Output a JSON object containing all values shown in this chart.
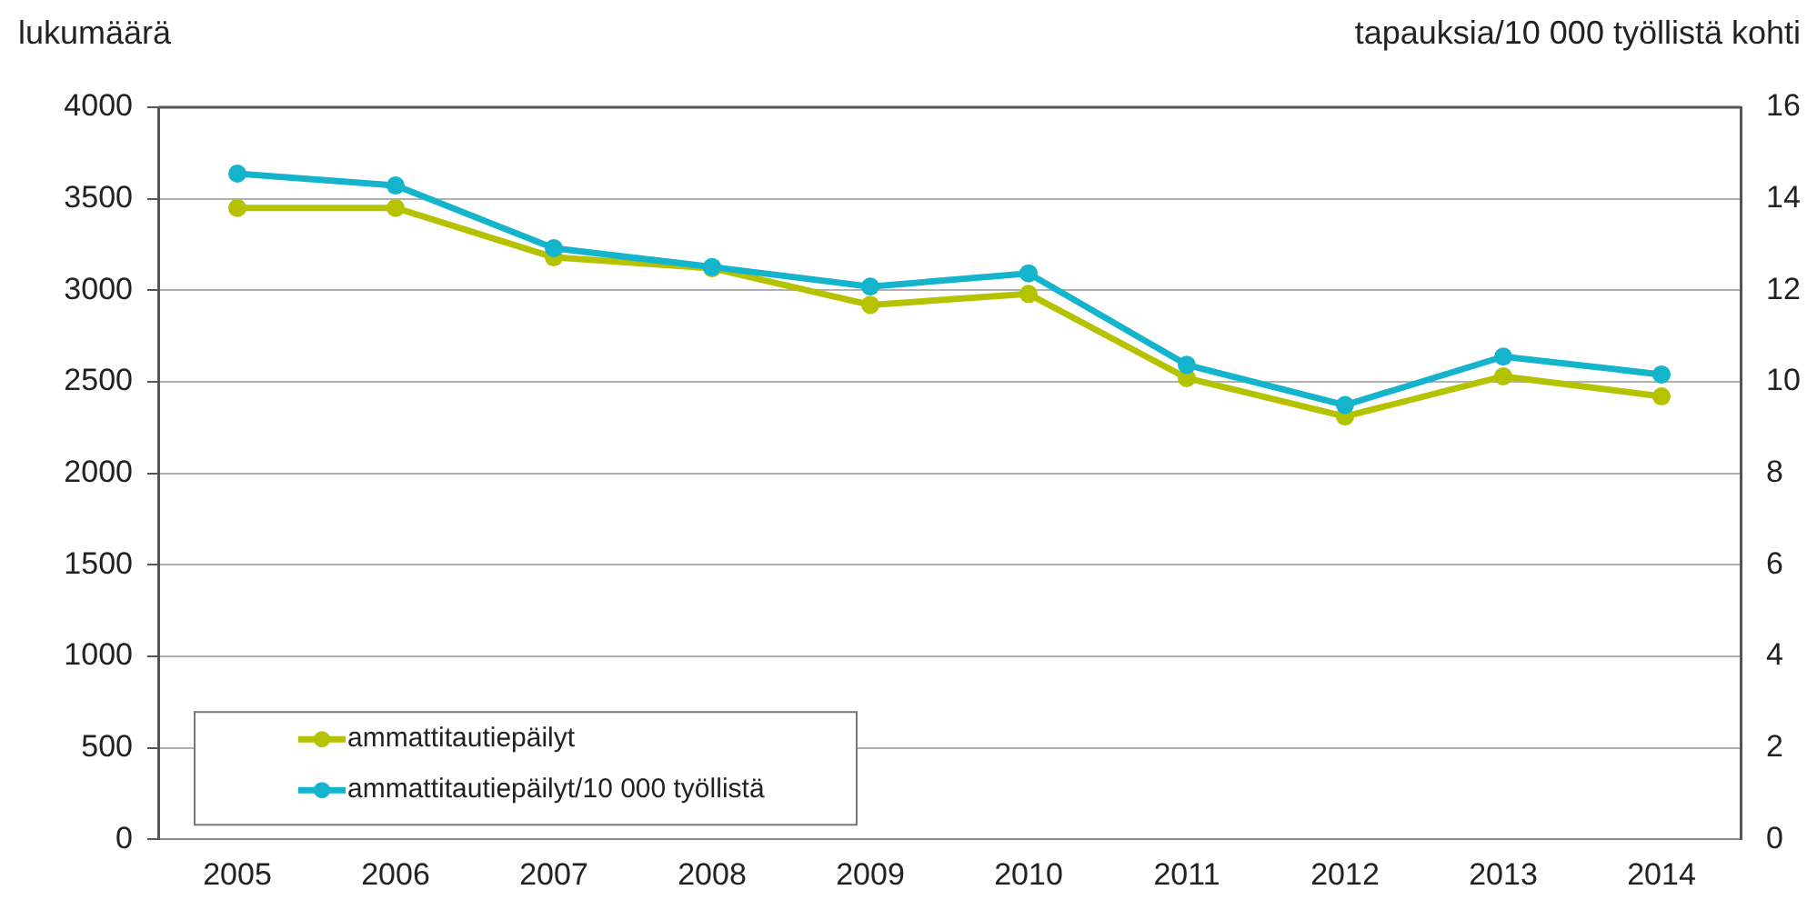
{
  "chart_data": {
    "type": "line",
    "ylabel": "lukumäärä",
    "y2label": "tapauksia/10 000 työllistä kohti",
    "categories": [
      "2005",
      "2006",
      "2007",
      "2008",
      "2009",
      "2010",
      "2011",
      "2012",
      "2013",
      "2014"
    ],
    "series": [
      {
        "name": "ammattitautiepäilyt",
        "color": "#b5c200",
        "values": [
          3450,
          3450,
          3180,
          3120,
          2920,
          2980,
          2520,
          2310,
          2530,
          2420
        ]
      },
      {
        "name": "ammattitautiepäilyt/10 000 työllistä",
        "color": "#14b4cc",
        "axis": "y2",
        "values": [
          14.55,
          14.29,
          12.92,
          12.51,
          12.08,
          12.37,
          10.37,
          9.49,
          10.55,
          10.16
        ]
      }
    ],
    "ylim": [
      0,
      4000
    ],
    "yticks": [
      0,
      500,
      1000,
      1500,
      2000,
      2500,
      3000,
      3500,
      4000
    ],
    "y2lim": [
      0,
      16
    ],
    "y2ticks": [
      0,
      2,
      4,
      6,
      8,
      10,
      12,
      14,
      16
    ],
    "grid": "y",
    "legend": "bottom left",
    "marker": "circle",
    "line_style": "solid"
  }
}
